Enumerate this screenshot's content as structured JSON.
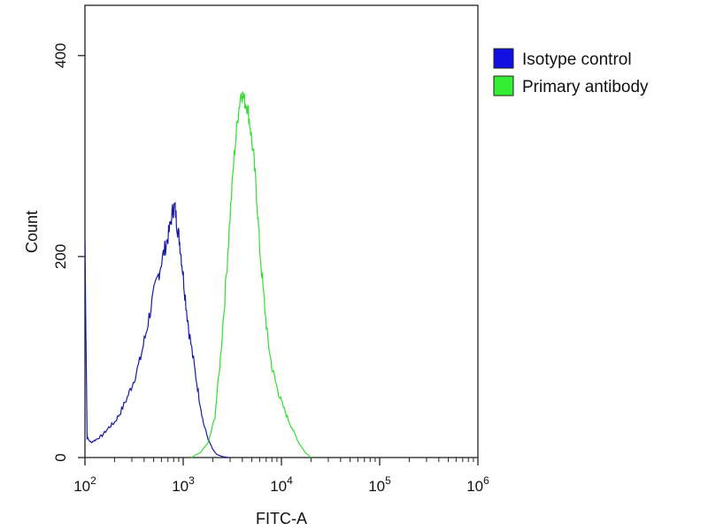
{
  "chart_data": {
    "type": "line",
    "xlabel": "FITC-A",
    "ylabel": "Count",
    "x_scale": "log",
    "xlim": [
      100,
      1000000
    ],
    "ylim": [
      0,
      450
    ],
    "x_ticks": [
      {
        "value": 100,
        "base": "10",
        "exp": "2"
      },
      {
        "value": 1000,
        "base": "10",
        "exp": "3"
      },
      {
        "value": 10000,
        "base": "10",
        "exp": "4"
      },
      {
        "value": 100000,
        "base": "10",
        "exp": "5"
      },
      {
        "value": 1000000,
        "base": "10",
        "exp": "6"
      }
    ],
    "y_ticks": [
      {
        "value": 0,
        "label": "0"
      },
      {
        "value": 200,
        "label": "200"
      },
      {
        "value": 400,
        "label": "400"
      }
    ],
    "grid": false,
    "legend_position": "top-right outside",
    "series": [
      {
        "name": "Isotype control",
        "color": "#1a1aa0",
        "swatch": "#1010e0",
        "x": [
          100,
          105,
          115,
          130,
          150,
          175,
          200,
          230,
          270,
          310,
          360,
          410,
          470,
          540,
          600,
          660,
          720,
          780,
          820,
          870,
          920,
          980,
          1050,
          1150,
          1300,
          1450,
          1600,
          1800,
          2000,
          2200,
          2500,
          2900
        ],
        "y": [
          215,
          20,
          15,
          18,
          22,
          30,
          35,
          45,
          60,
          75,
          95,
          120,
          150,
          175,
          195,
          210,
          225,
          245,
          250,
          230,
          215,
          190,
          160,
          125,
          90,
          60,
          35,
          18,
          8,
          3,
          1,
          0
        ]
      },
      {
        "name": "Primary antibody",
        "color": "#33dd33",
        "swatch": "#33ee33",
        "x": [
          1200,
          1500,
          1800,
          2100,
          2400,
          2700,
          3000,
          3300,
          3600,
          3900,
          4200,
          4500,
          4800,
          5200,
          5600,
          6000,
          6600,
          7200,
          8000,
          9000,
          10000,
          11500,
          13000,
          15000,
          17500,
          20000
        ],
        "y": [
          0,
          5,
          15,
          40,
          100,
          170,
          240,
          300,
          340,
          365,
          355,
          350,
          330,
          300,
          260,
          210,
          160,
          120,
          90,
          70,
          55,
          40,
          28,
          15,
          5,
          0
        ]
      }
    ]
  }
}
